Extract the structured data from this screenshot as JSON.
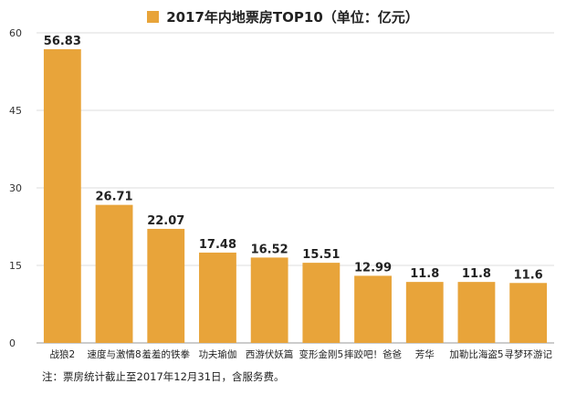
{
  "legend": {
    "label": "2017年内地票房TOP10（单位：亿元）",
    "color": "#E8A43A"
  },
  "note": "注：票房统计截止至2017年12月31日，含服务费。",
  "chart_data": {
    "type": "bar",
    "title": "",
    "xlabel": "",
    "ylabel": "",
    "ylim": [
      0,
      60
    ],
    "yticks": [
      0,
      15,
      30,
      45,
      60
    ],
    "grid": true,
    "legend_position": "top",
    "categories": [
      "战狼2",
      "速度与激情8",
      "羞羞的铁拳",
      "功夫瑜伽",
      "西游伏妖篇",
      "变形金刚5",
      "摔跤吧！爸爸",
      "芳华",
      "加勒比海盗5",
      "寻梦环游记"
    ],
    "series": [
      {
        "name": "2017年内地票房TOP10（单位：亿元）",
        "values": [
          56.83,
          26.71,
          22.07,
          17.48,
          16.52,
          15.51,
          12.99,
          11.8,
          11.8,
          11.6
        ],
        "labels": [
          "56.83",
          "26.71",
          "22.07",
          "17.48",
          "16.52",
          "15.51",
          "12.99",
          "11.8",
          "11.8",
          "11.6"
        ],
        "color": "#E8A43A"
      }
    ]
  }
}
